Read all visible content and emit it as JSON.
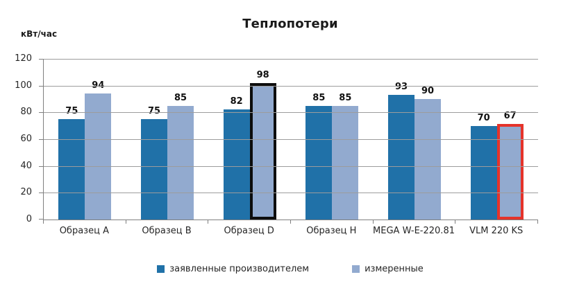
{
  "chart_data": {
    "type": "bar",
    "title": "Теплопотери",
    "ylabel": "кВт/час",
    "xlabel": "",
    "ylim": [
      0,
      120
    ],
    "ytick_step": 20,
    "grid": true,
    "legend_position": "bottom",
    "background": "#ffffff",
    "axis_color": "#7f7f7f",
    "gridline_color": "#9c9c9c",
    "categories": [
      "Образец A",
      "Образец B",
      "Образец D",
      "Образец H",
      "MEGA W-E-220.81",
      "VLM 220 KS"
    ],
    "series": [
      {
        "name": "заявленные производителем",
        "color": "#2071a8",
        "values": [
          75,
          75,
          82,
          85,
          93,
          70
        ]
      },
      {
        "name": "измеренные",
        "color": "#92aacf",
        "values": [
          94,
          85,
          98,
          85,
          90,
          67
        ]
      }
    ],
    "highlights": [
      {
        "category": "Образец D",
        "series": "измеренные",
        "outline_color": "#0d0d0d",
        "outline_width": 4
      },
      {
        "category": "VLM 220 KS",
        "series": "измеренные",
        "outline_color": "#e5332a",
        "outline_width": 4
      }
    ]
  }
}
